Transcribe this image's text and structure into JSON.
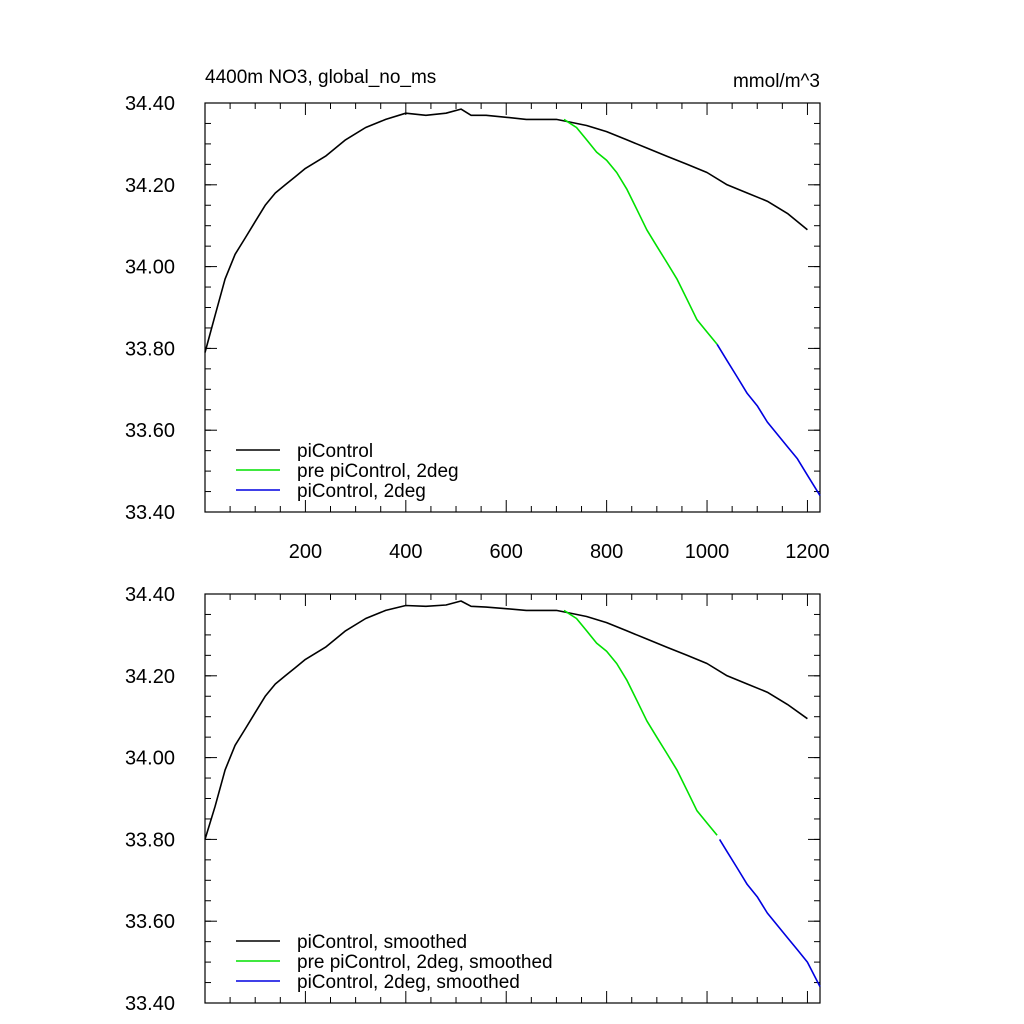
{
  "title": "4400m NO3, global_no_ms",
  "units": "mmol/m^3",
  "chart_data": [
    {
      "type": "line",
      "panel": "top",
      "xlim": [
        0,
        1225
      ],
      "ylim": [
        33.4,
        34.4
      ],
      "xticks": [
        200,
        400,
        600,
        800,
        1000,
        1200
      ],
      "xtick_labels": [
        "200",
        "400",
        "600",
        "800",
        "1000",
        "1200"
      ],
      "yticks": [
        33.4,
        33.6,
        33.8,
        34.0,
        34.2,
        34.4
      ],
      "ytick_labels": [
        "33.40",
        "33.60",
        "33.80",
        "34.00",
        "34.20",
        "34.40"
      ],
      "legend_position": "bottom-left",
      "series": [
        {
          "name": "piControl",
          "color": "#000000",
          "x": [
            0,
            20,
            40,
            60,
            80,
            100,
            120,
            140,
            160,
            180,
            200,
            240,
            280,
            320,
            360,
            400,
            440,
            480,
            510,
            530,
            560,
            600,
            640,
            680,
            700,
            720,
            760,
            800,
            840,
            880,
            920,
            960,
            1000,
            1040,
            1080,
            1120,
            1160,
            1200
          ],
          "y": [
            33.79,
            33.88,
            33.97,
            34.03,
            34.07,
            34.11,
            34.15,
            34.18,
            34.2,
            34.22,
            34.24,
            34.27,
            34.31,
            34.34,
            34.36,
            34.375,
            34.37,
            34.375,
            34.385,
            34.37,
            34.37,
            34.365,
            34.36,
            34.36,
            34.36,
            34.355,
            34.345,
            34.33,
            34.31,
            34.29,
            34.27,
            34.25,
            34.23,
            34.2,
            34.18,
            34.16,
            34.13,
            34.09
          ]
        },
        {
          "name": "pre piControl, 2deg",
          "color": "#00e000",
          "x": [
            715,
            740,
            760,
            780,
            800,
            820,
            840,
            860,
            880,
            900,
            920,
            940,
            960,
            980,
            1000,
            1020
          ],
          "y": [
            34.36,
            34.34,
            34.31,
            34.28,
            34.26,
            34.23,
            34.19,
            34.14,
            34.09,
            34.05,
            34.01,
            33.97,
            33.92,
            33.87,
            33.84,
            33.81
          ]
        },
        {
          "name": "piControl, 2deg",
          "color": "#0000e0",
          "x": [
            1020,
            1040,
            1060,
            1080,
            1100,
            1120,
            1140,
            1160,
            1180,
            1200,
            1225
          ],
          "y": [
            33.81,
            33.77,
            33.73,
            33.69,
            33.66,
            33.62,
            33.59,
            33.56,
            33.53,
            33.49,
            33.44
          ]
        }
      ]
    },
    {
      "type": "line",
      "panel": "bottom",
      "xlim": [
        0,
        1225
      ],
      "ylim": [
        33.4,
        34.4
      ],
      "xticks": [
        200,
        400,
        600,
        800,
        1000,
        1200
      ],
      "yticks": [
        33.4,
        33.6,
        33.8,
        34.0,
        34.2,
        34.4
      ],
      "ytick_labels": [
        "33.40",
        "33.60",
        "33.80",
        "34.00",
        "34.20",
        "34.40"
      ],
      "legend_position": "bottom-left",
      "series": [
        {
          "name": "piControl, smoothed",
          "color": "#000000",
          "x": [
            0,
            20,
            40,
            60,
            80,
            100,
            120,
            140,
            160,
            180,
            200,
            240,
            280,
            320,
            360,
            400,
            440,
            480,
            510,
            530,
            560,
            600,
            640,
            680,
            700,
            720,
            760,
            800,
            840,
            880,
            920,
            960,
            1000,
            1040,
            1080,
            1120,
            1160,
            1200
          ],
          "y": [
            33.8,
            33.88,
            33.97,
            34.03,
            34.07,
            34.11,
            34.15,
            34.18,
            34.2,
            34.22,
            34.24,
            34.27,
            34.31,
            34.34,
            34.36,
            34.372,
            34.37,
            34.373,
            34.383,
            34.37,
            34.368,
            34.364,
            34.36,
            34.36,
            34.36,
            34.355,
            34.345,
            34.33,
            34.31,
            34.29,
            34.27,
            34.25,
            34.23,
            34.2,
            34.18,
            34.16,
            34.13,
            34.095
          ]
        },
        {
          "name": "pre piControl, 2deg, smoothed",
          "color": "#00e000",
          "x": [
            715,
            740,
            760,
            780,
            800,
            820,
            840,
            860,
            880,
            900,
            920,
            940,
            960,
            980,
            1000,
            1020
          ],
          "y": [
            34.36,
            34.34,
            34.31,
            34.28,
            34.26,
            34.23,
            34.19,
            34.14,
            34.09,
            34.05,
            34.01,
            33.97,
            33.92,
            33.87,
            33.84,
            33.81
          ]
        },
        {
          "name": "piControl, 2deg, smoothed",
          "color": "#0000e0",
          "x": [
            1025,
            1040,
            1060,
            1080,
            1100,
            1120,
            1140,
            1160,
            1180,
            1200,
            1225
          ],
          "y": [
            33.8,
            33.77,
            33.73,
            33.69,
            33.66,
            33.62,
            33.59,
            33.56,
            33.53,
            33.5,
            33.44
          ]
        }
      ]
    }
  ]
}
